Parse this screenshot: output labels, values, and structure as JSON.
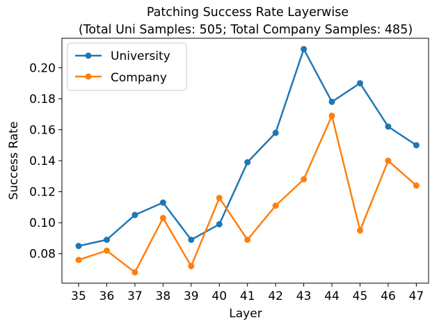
{
  "chart_data": {
    "type": "line",
    "title": "Patching Success Rate Layerwise",
    "subtitle": "(Total Uni Samples: 505; Total Company Samples: 485)",
    "xlabel": "Layer",
    "ylabel": "Success Rate",
    "categories": [
      "35",
      "36",
      "37",
      "38",
      "39",
      "40",
      "41",
      "42",
      "43",
      "44",
      "45",
      "46",
      "47"
    ],
    "yticks": [
      "0.08",
      "0.10",
      "0.12",
      "0.14",
      "0.16",
      "0.18",
      "0.20"
    ],
    "ylim": [
      0.061,
      0.219
    ],
    "grid": false,
    "legend_position": "top-left",
    "series": [
      {
        "name": "University",
        "color": "#1f77b4",
        "values": [
          0.085,
          0.089,
          0.105,
          0.113,
          0.089,
          0.099,
          0.139,
          0.158,
          0.212,
          0.178,
          0.19,
          0.162,
          0.15
        ]
      },
      {
        "name": "Company",
        "color": "#ff7f0e",
        "values": [
          0.076,
          0.082,
          0.068,
          0.103,
          0.072,
          0.116,
          0.089,
          0.111,
          0.128,
          0.169,
          0.095,
          0.14,
          0.124
        ]
      }
    ]
  }
}
